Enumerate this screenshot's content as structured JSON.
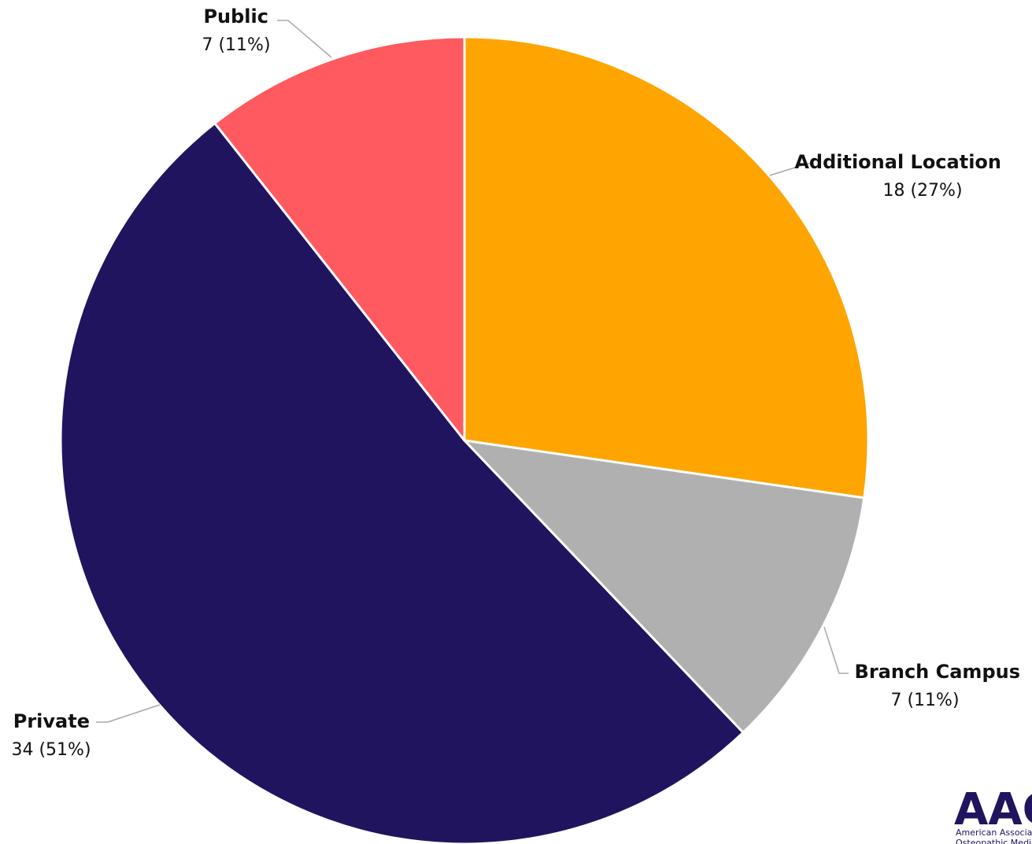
{
  "chart_data": {
    "type": "pie",
    "slices": [
      {
        "label": "Additional Location",
        "value": 18,
        "value_label": "18 (27%)",
        "color": "#ffa502"
      },
      {
        "label": "Branch Campus",
        "value": 7,
        "value_label": "7 (11%)",
        "color": "#b0b0b0"
      },
      {
        "label": "Private",
        "value": 34,
        "value_label": "34 (51%)",
        "color": "#21145f"
      },
      {
        "label": "Public",
        "value": 7,
        "value_label": "7 (11%)",
        "color": "#ff5a5f"
      }
    ],
    "start_angle_deg": 0,
    "direction": "clockwise"
  },
  "logo": {
    "mark": "AACOM",
    "subtitle_line1": "American Association of Colleges of",
    "subtitle_line2": "Osteopathic Medicine"
  }
}
